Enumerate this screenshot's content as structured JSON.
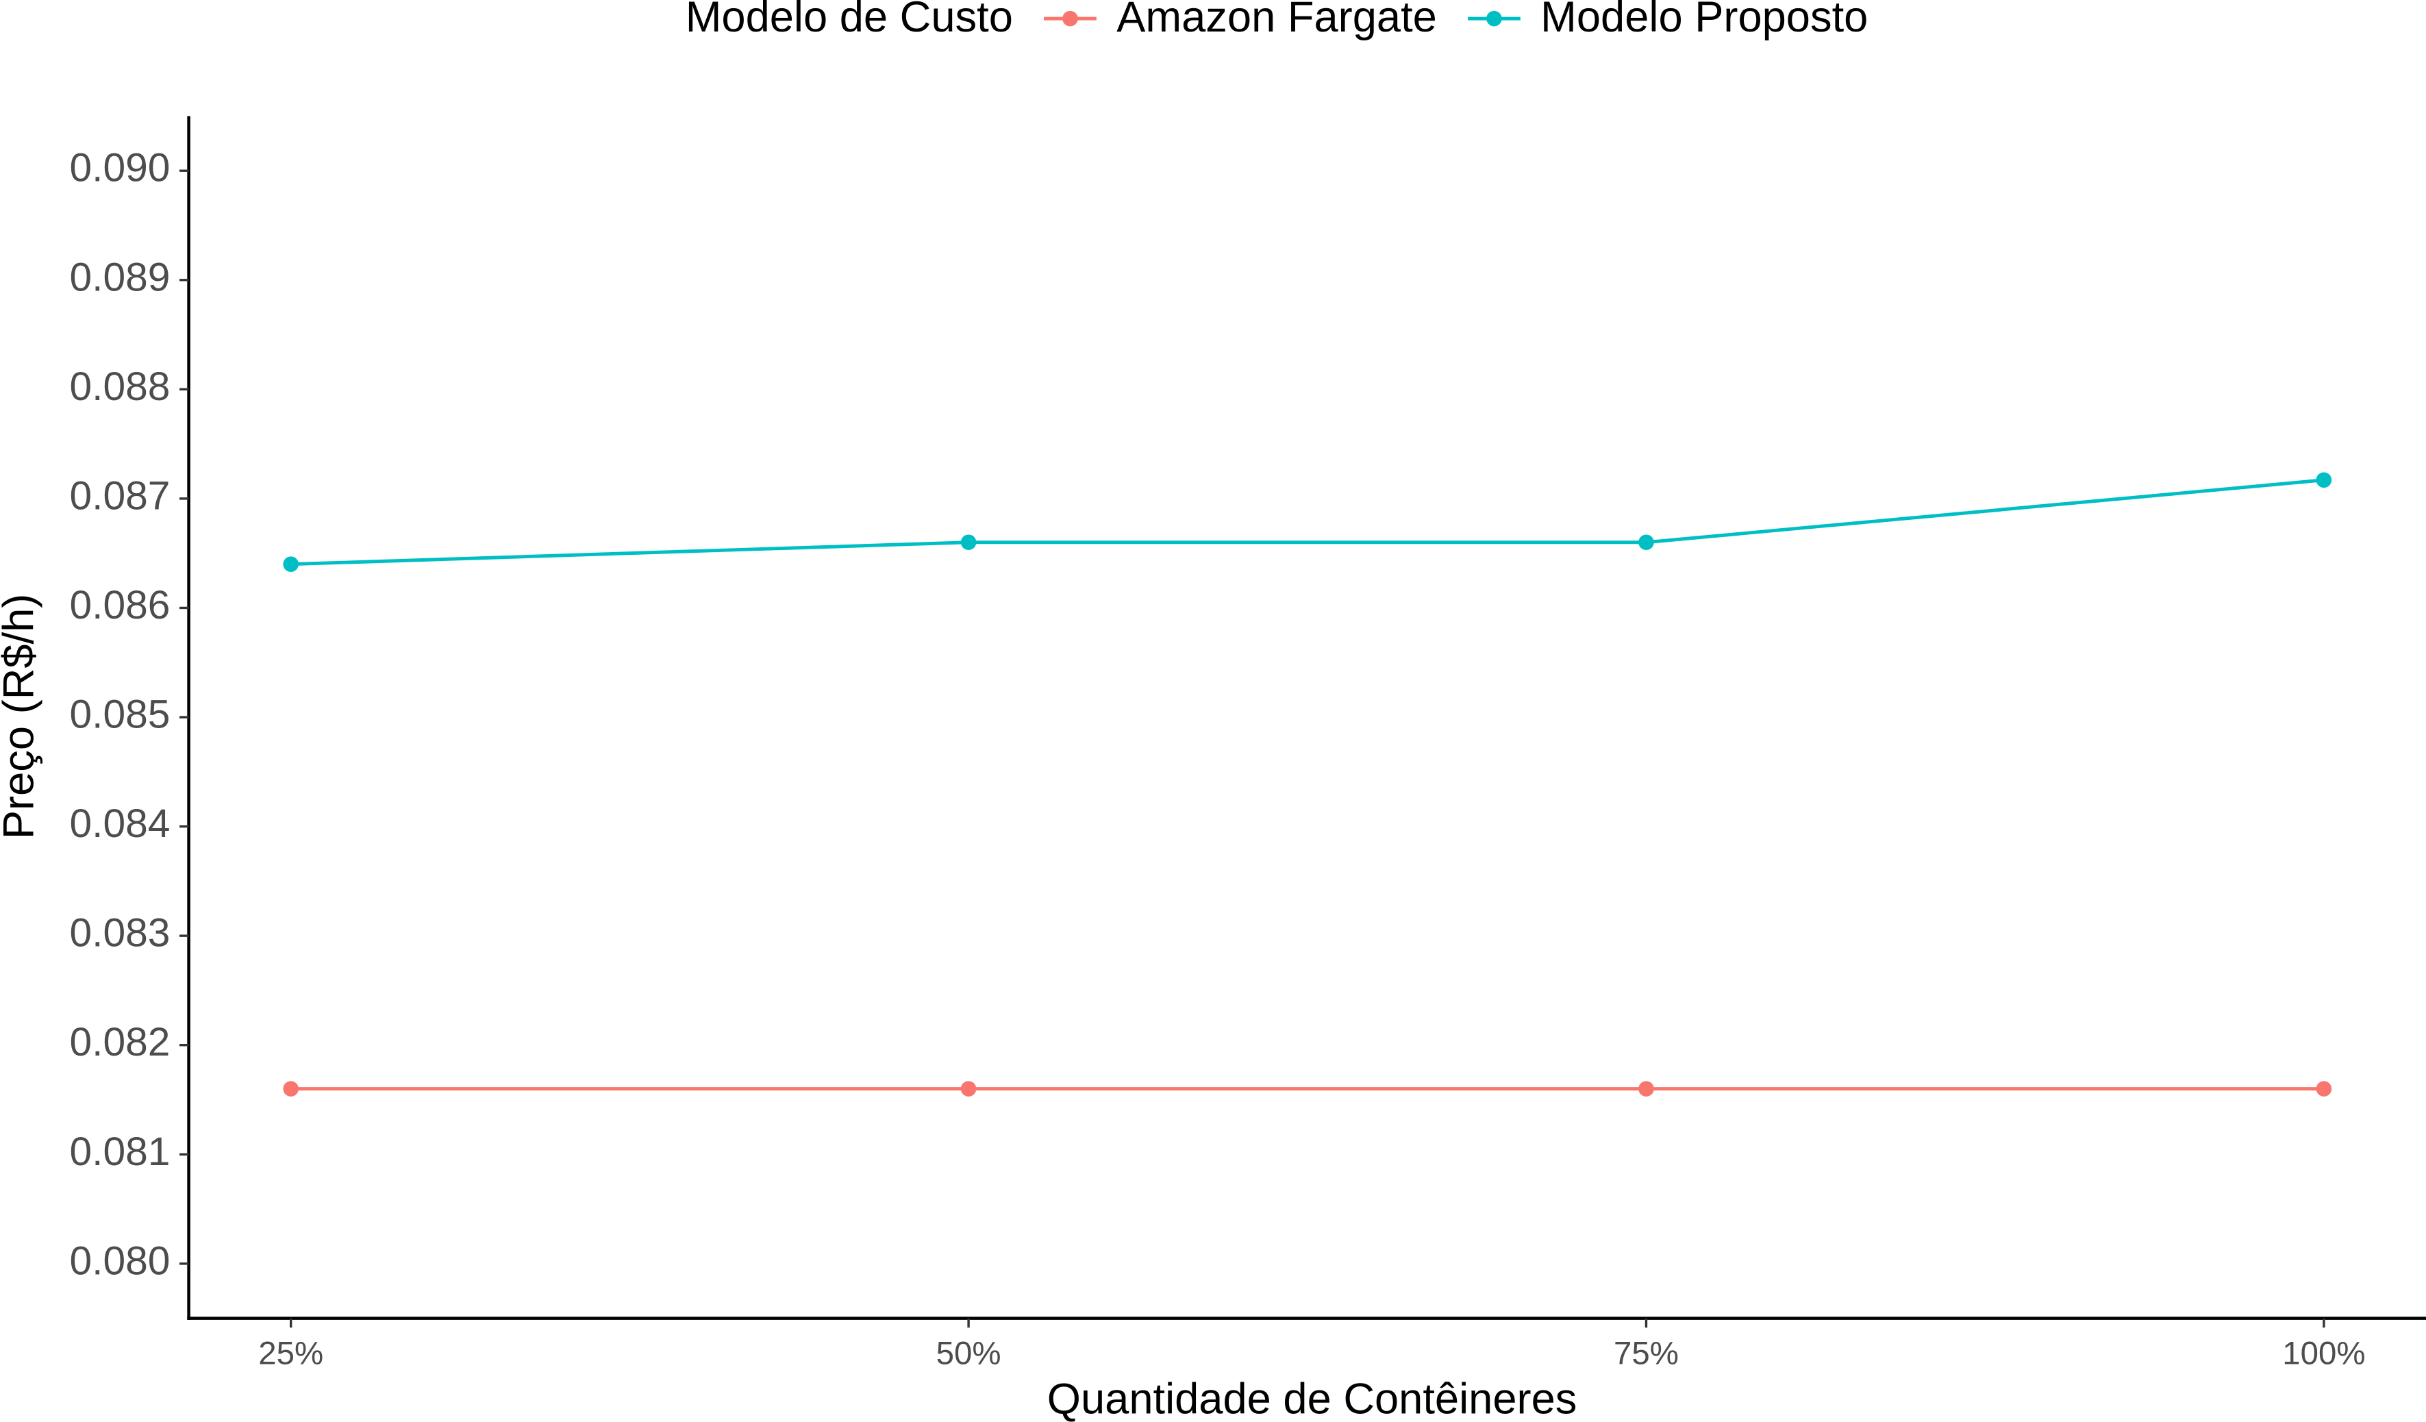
{
  "chart_data": {
    "type": "line",
    "legend_title": "Modelo de Custo",
    "x_label": "Quantidade de Contêineres",
    "y_label": "Preço (R$/h)",
    "categories": [
      "25%",
      "50%",
      "75%",
      "100%"
    ],
    "series": [
      {
        "name": "Amazon Fargate",
        "color": "#f8766d",
        "values": [
          0.0816,
          0.0816,
          0.0816,
          0.0816
        ]
      },
      {
        "name": "Modelo Proposto",
        "color": "#00bfc4",
        "values": [
          0.0864,
          0.0866,
          0.0866,
          0.08717
        ]
      }
    ],
    "ylim": [
      0.0795,
      0.0905
    ],
    "yticks": [
      {
        "value": 0.08,
        "label": "0.080"
      },
      0.081,
      0.082,
      0.083,
      0.084,
      0.085,
      0.086,
      0.087,
      0.088,
      0.089,
      {
        "value": 0.09,
        "label": "0.090"
      }
    ],
    "grid": false,
    "legend_position": "top"
  }
}
